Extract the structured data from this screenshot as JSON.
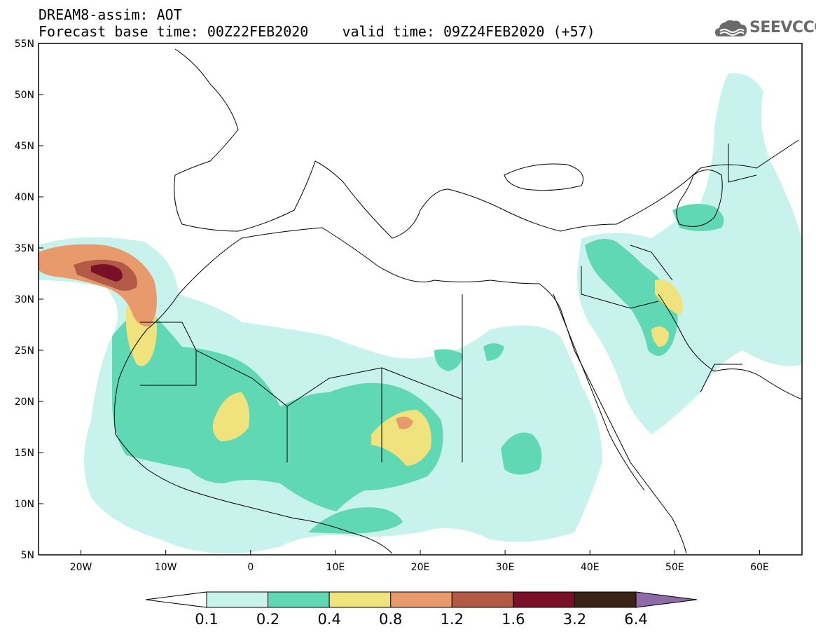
{
  "header": {
    "line1": "DREAM8-assim: AOT",
    "line2": "Forecast base time: 00Z22FEB2020    valid time: 09Z24FEB2020 (+57)"
  },
  "logo": {
    "text": "SEEVCCC",
    "icon": "cloud-logo-icon",
    "color": "#6a6a6a"
  },
  "map": {
    "projection": "lat-lon",
    "lon_range": [
      -25,
      65
    ],
    "lat_range": [
      5,
      55
    ],
    "x_ticks": [
      {
        "lon": -20,
        "label": "20W"
      },
      {
        "lon": -10,
        "label": "10W"
      },
      {
        "lon": 0,
        "label": "0"
      },
      {
        "lon": 10,
        "label": "10E"
      },
      {
        "lon": 20,
        "label": "20E"
      },
      {
        "lon": 30,
        "label": "30E"
      },
      {
        "lon": 40,
        "label": "40E"
      },
      {
        "lon": 50,
        "label": "50E"
      },
      {
        "lon": 60,
        "label": "60E"
      }
    ],
    "y_ticks": [
      {
        "lat": 55,
        "label": "55N"
      },
      {
        "lat": 50,
        "label": "50N"
      },
      {
        "lat": 45,
        "label": "45N"
      },
      {
        "lat": 40,
        "label": "40N"
      },
      {
        "lat": 35,
        "label": "35N"
      },
      {
        "lat": 30,
        "label": "30N"
      },
      {
        "lat": 25,
        "label": "25N"
      },
      {
        "lat": 20,
        "label": "20N"
      },
      {
        "lat": 15,
        "label": "15N"
      },
      {
        "lat": 10,
        "label": "10N"
      },
      {
        "lat": 5,
        "label": "5N"
      }
    ]
  },
  "colorbar": {
    "colors": [
      "#ffffff",
      "#c8f2ec",
      "#5fd8b3",
      "#f0e27c",
      "#e89a6d",
      "#b35a46",
      "#7a1028",
      "#3b2416",
      "#8e6aa6"
    ],
    "labels": [
      "0.1",
      "0.2",
      "0.4",
      "0.8",
      "1.2",
      "1.6",
      "3.2",
      "6.4"
    ]
  }
}
